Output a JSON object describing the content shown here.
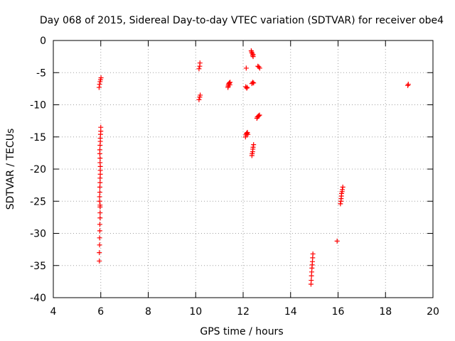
{
  "chart_data": {
    "type": "scatter",
    "title": "Day 068 of 2015, Sidereal Day-to-day VTEC variation (SDTVAR) for receiver obe4",
    "xlabel": "GPS time / hours",
    "ylabel": "SDTVAR / TECUs",
    "xlim": [
      4,
      20
    ],
    "ylim": [
      -40,
      0
    ],
    "xticks": [
      4,
      6,
      8,
      10,
      12,
      14,
      16,
      18,
      20
    ],
    "yticks": [
      0,
      -5,
      -10,
      -15,
      -20,
      -25,
      -30,
      -35,
      -40
    ],
    "grid": true,
    "marker": "+",
    "color": "#ff0000",
    "series": [
      {
        "name": "SDTVAR",
        "points": [
          [
            5.93,
            -7.3
          ],
          [
            5.95,
            -6.8
          ],
          [
            5.97,
            -6.4
          ],
          [
            5.99,
            -6.1
          ],
          [
            6.01,
            -5.8
          ],
          [
            5.94,
            -34.3
          ],
          [
            5.94,
            -33.0
          ],
          [
            5.95,
            -31.8
          ],
          [
            5.95,
            -30.7
          ],
          [
            5.96,
            -29.6
          ],
          [
            5.96,
            -28.6
          ],
          [
            5.97,
            -27.6
          ],
          [
            5.97,
            -26.8
          ],
          [
            5.97,
            -25.9
          ],
          [
            5.97,
            -25.6
          ],
          [
            5.95,
            -25.0
          ],
          [
            5.95,
            -24.3
          ],
          [
            5.96,
            -23.6
          ],
          [
            5.96,
            -22.8
          ],
          [
            5.97,
            -22.1
          ],
          [
            5.97,
            -21.4
          ],
          [
            5.98,
            -20.8
          ],
          [
            5.98,
            -20.2
          ],
          [
            5.98,
            -19.6
          ],
          [
            5.97,
            -19.0
          ],
          [
            5.97,
            -18.3
          ],
          [
            5.96,
            -17.6
          ],
          [
            5.96,
            -17.0
          ],
          [
            5.97,
            -16.3
          ],
          [
            5.98,
            -15.7
          ],
          [
            5.98,
            -15.2
          ],
          [
            5.99,
            -14.6
          ],
          [
            6.0,
            -14.1
          ],
          [
            6.0,
            -13.5
          ],
          [
            10.14,
            -4.4
          ],
          [
            10.17,
            -4.0
          ],
          [
            10.18,
            -3.5
          ],
          [
            10.14,
            -9.2
          ],
          [
            10.17,
            -8.8
          ],
          [
            10.19,
            -8.5
          ],
          [
            11.36,
            -7.3
          ],
          [
            11.37,
            -7.1
          ],
          [
            11.38,
            -6.9
          ],
          [
            11.4,
            -6.7
          ],
          [
            11.42,
            -6.6
          ],
          [
            11.44,
            -6.9
          ],
          [
            11.45,
            -6.5
          ],
          [
            12.13,
            -4.3
          ],
          [
            12.11,
            -7.2
          ],
          [
            12.15,
            -7.4
          ],
          [
            12.17,
            -7.3
          ],
          [
            12.1,
            -15.0
          ],
          [
            12.12,
            -14.7
          ],
          [
            12.14,
            -14.5
          ],
          [
            12.16,
            -14.4
          ],
          [
            12.18,
            -14.3
          ],
          [
            12.2,
            -14.6
          ],
          [
            12.34,
            -1.6
          ],
          [
            12.36,
            -1.8
          ],
          [
            12.38,
            -2.0
          ],
          [
            12.4,
            -2.3
          ],
          [
            12.42,
            -2.2
          ],
          [
            12.42,
            -2.5
          ],
          [
            12.37,
            -6.7
          ],
          [
            12.4,
            -6.5
          ],
          [
            12.44,
            -6.6
          ],
          [
            12.37,
            -17.9
          ],
          [
            12.38,
            -17.6
          ],
          [
            12.4,
            -17.3
          ],
          [
            12.41,
            -16.9
          ],
          [
            12.42,
            -16.6
          ],
          [
            12.44,
            -16.2
          ],
          [
            12.62,
            -4.0
          ],
          [
            12.66,
            -4.1
          ],
          [
            12.7,
            -4.3
          ],
          [
            12.58,
            -12.1
          ],
          [
            12.6,
            -11.9
          ],
          [
            12.63,
            -11.8
          ],
          [
            12.66,
            -11.7
          ],
          [
            12.69,
            -11.6
          ],
          [
            14.86,
            -37.9
          ],
          [
            14.87,
            -37.3
          ],
          [
            14.88,
            -36.6
          ],
          [
            14.89,
            -36.0
          ],
          [
            14.9,
            -35.4
          ],
          [
            14.91,
            -34.9
          ],
          [
            14.92,
            -34.4
          ],
          [
            14.93,
            -33.8
          ],
          [
            14.94,
            -33.2
          ],
          [
            15.96,
            -31.2
          ],
          [
            16.1,
            -25.4
          ],
          [
            16.12,
            -25.0
          ],
          [
            16.13,
            -24.6
          ],
          [
            16.14,
            -24.2
          ],
          [
            16.15,
            -23.8
          ],
          [
            16.17,
            -23.5
          ],
          [
            16.18,
            -23.2
          ],
          [
            16.2,
            -22.8
          ],
          [
            18.94,
            -7.0
          ],
          [
            18.96,
            -6.8
          ]
        ]
      }
    ]
  }
}
